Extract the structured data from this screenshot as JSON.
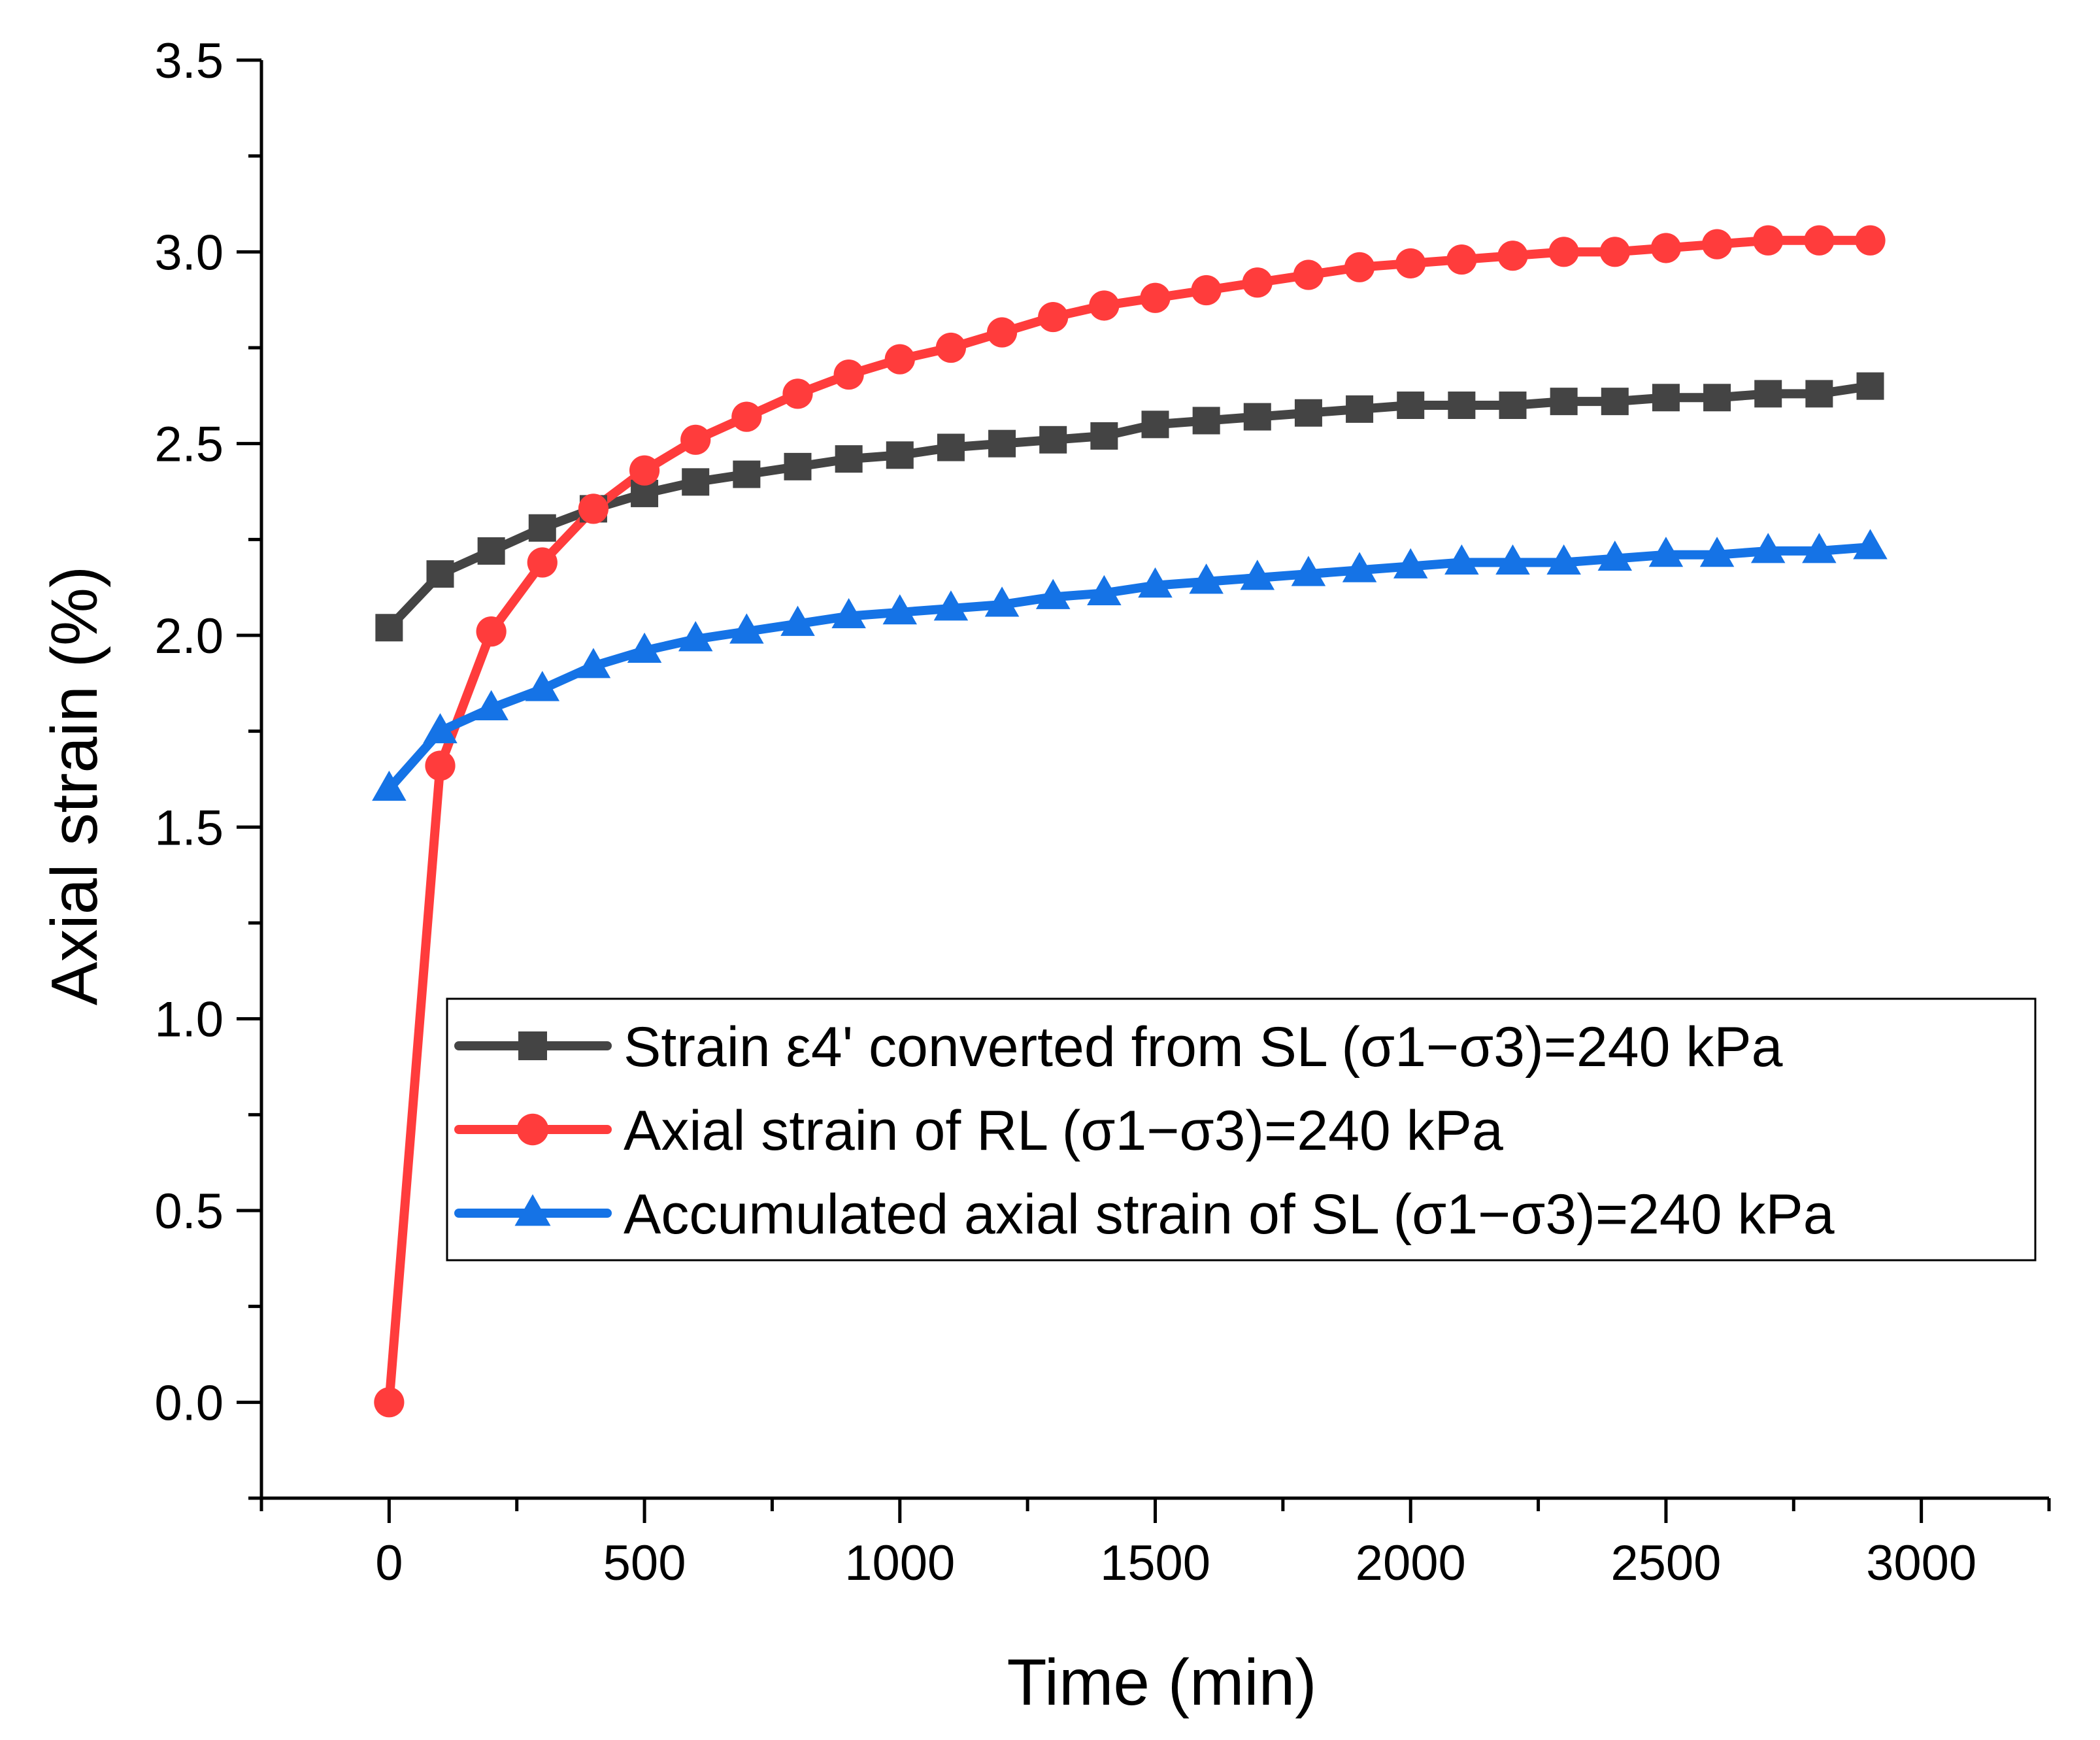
{
  "chart_data": {
    "type": "line",
    "title": "",
    "xlabel": "Time (min)",
    "ylabel": "Axial strain (%)",
    "xlim": [
      -250,
      3250
    ],
    "ylim": [
      -0.25,
      3.5
    ],
    "xticks": [
      0,
      500,
      1000,
      1500,
      2000,
      2500,
      3000
    ],
    "xtick_labels": [
      "0",
      "500",
      "1000",
      "1500",
      "2000",
      "2500",
      "3000"
    ],
    "yticks": [
      0.0,
      0.5,
      1.0,
      1.5,
      2.0,
      2.5,
      3.0,
      3.5
    ],
    "ytick_labels": [
      "0.0",
      "0.5",
      "1.0",
      "1.5",
      "2.0",
      "2.5",
      "3.0",
      "3.5"
    ],
    "grid": false,
    "legend_position": "center-right",
    "x": [
      0,
      100,
      200,
      300,
      400,
      500,
      600,
      700,
      800,
      900,
      1000,
      1100,
      1200,
      1300,
      1400,
      1500,
      1600,
      1700,
      1800,
      1900,
      2000,
      2100,
      2200,
      2300,
      2400,
      2500,
      2600,
      2700,
      2800,
      2900
    ],
    "series": [
      {
        "name": "Strain ε4' converted from SL (σ1−σ3)=240 kPa",
        "color": "#444444",
        "marker": "square",
        "values": [
          2.02,
          2.16,
          2.22,
          2.28,
          2.33,
          2.37,
          2.4,
          2.42,
          2.44,
          2.46,
          2.47,
          2.49,
          2.5,
          2.51,
          2.52,
          2.55,
          2.56,
          2.57,
          2.58,
          2.59,
          2.6,
          2.6,
          2.6,
          2.61,
          2.61,
          2.62,
          2.62,
          2.63,
          2.63,
          2.65
        ]
      },
      {
        "name": "Axial strain of RL (σ1−σ3)=240 kPa",
        "color": "#ff3c3c",
        "marker": "circle",
        "values": [
          0.0,
          1.66,
          2.01,
          2.19,
          2.33,
          2.43,
          2.51,
          2.57,
          2.63,
          2.68,
          2.72,
          2.75,
          2.79,
          2.83,
          2.86,
          2.88,
          2.9,
          2.92,
          2.94,
          2.96,
          2.97,
          2.98,
          2.99,
          3.0,
          3.0,
          3.01,
          3.02,
          3.03,
          3.03,
          3.03
        ]
      },
      {
        "name": "Accumulated axial strain of SL (σ1−σ3)=240 kPa",
        "color": "#1573e6",
        "marker": "triangle",
        "values": [
          1.6,
          1.75,
          1.81,
          1.86,
          1.92,
          1.96,
          1.99,
          2.01,
          2.03,
          2.05,
          2.06,
          2.07,
          2.08,
          2.1,
          2.11,
          2.13,
          2.14,
          2.15,
          2.16,
          2.17,
          2.18,
          2.19,
          2.19,
          2.19,
          2.2,
          2.21,
          2.21,
          2.22,
          2.22,
          2.23
        ]
      }
    ]
  }
}
